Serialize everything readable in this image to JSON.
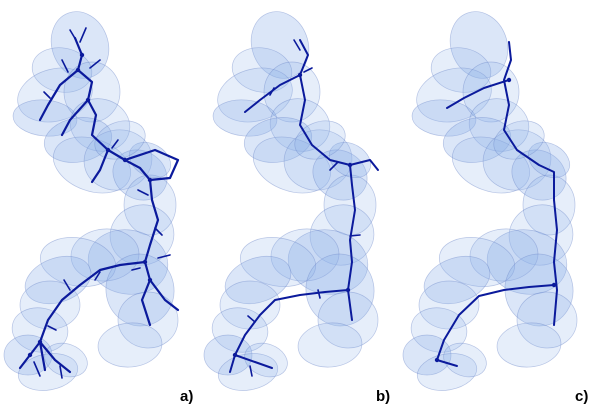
{
  "panels": [
    {
      "label": "a)",
      "variant": "dense"
    },
    {
      "label": "b)",
      "variant": "medium"
    },
    {
      "label": "c)",
      "variant": "sparse"
    }
  ],
  "colors": {
    "volume_fill": "#8fb0e8",
    "volume_stroke": "#6a86c8",
    "skeleton": "#0b1a9c",
    "background": "#ffffff"
  }
}
